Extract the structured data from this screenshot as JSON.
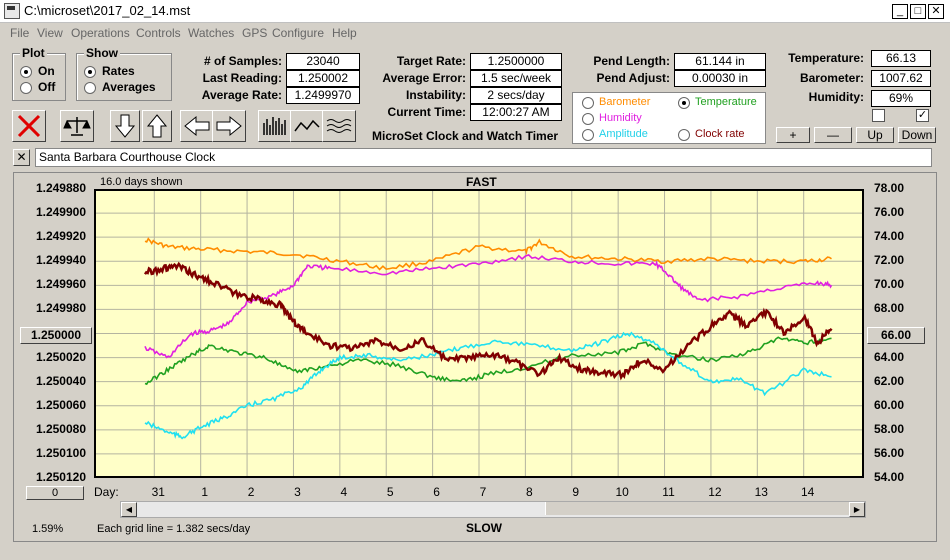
{
  "window": {
    "title": "C:\\microset\\2017_02_14.mst",
    "min": "_",
    "max": "□",
    "close": "✕"
  },
  "menu": [
    "File",
    "View",
    "Operations",
    "Controls",
    "Watches",
    "GPS",
    "Configure",
    "Help"
  ],
  "plot_group": {
    "title": "Plot",
    "options": [
      "On",
      "Off"
    ],
    "selected": "On"
  },
  "show_group": {
    "title": "Show",
    "options": [
      "Rates",
      "Averages"
    ],
    "selected": "Rates"
  },
  "stats": {
    "samples_label": "# of Samples:",
    "samples": "23040",
    "last_label": "Last Reading:",
    "last": "1.250002",
    "avg_label": "Average Rate:",
    "avg": "1.2499970",
    "target_label": "Target Rate:",
    "target": "1.2500000",
    "err_label": "Average Error:",
    "err": "1.5 sec/week",
    "instab_label": "Instability:",
    "instab": "2 secs/day",
    "time_label": "Current Time:",
    "time": "12:00:27 AM",
    "pend_len_label": "Pend Length:",
    "pend_len": "61.144 in",
    "pend_adj_label": "Pend Adjust:",
    "pend_adj": "0.00030 in",
    "temp_label": "Temperature:",
    "temp": "66.13",
    "baro_label": "Barometer:",
    "baro": "1007.62",
    "hum_label": "Humidity:",
    "hum": "69%"
  },
  "app_name": "MicroSet Clock and Watch Timer",
  "sensor_options": {
    "barometer": "Barometer",
    "temperature": "Temperature",
    "humidity": "Humidity",
    "amplitude": "Amplitude",
    "clock_rate": "Clock rate",
    "selected": "Temperature"
  },
  "sensor_buttons": {
    "plus": "+",
    "minus": "—",
    "up": "Up",
    "down": "Down"
  },
  "clock_name": "Santa Barbara Courthouse Clock",
  "close_small": "✕",
  "chart_data": {
    "type": "line",
    "top_label": "FAST",
    "bottom_label": "SLOW",
    "days_shown": "16.0 days shown",
    "grid_note": "Each grid line = 1.382 secs/day",
    "percent": "1.59%",
    "left_button": "1.250000",
    "right_button": "66.00",
    "zero_button": "0",
    "xlabel": "Day:",
    "x_ticks": [
      "31",
      "1",
      "2",
      "3",
      "4",
      "5",
      "6",
      "7",
      "8",
      "9",
      "10",
      "11",
      "12",
      "13",
      "14"
    ],
    "y_left_ticks": [
      "1.249880",
      "1.249900",
      "1.249920",
      "1.249940",
      "1.249960",
      "1.249980",
      "1.250000",
      "1.250020",
      "1.250040",
      "1.250060",
      "1.250080",
      "1.250100",
      "1.250120"
    ],
    "y_right_ticks": [
      "78.00",
      "76.00",
      "74.00",
      "72.00",
      "70.00",
      "68.00",
      "66.00",
      "64.00",
      "62.00",
      "60.00",
      "58.00",
      "56.00",
      "54.00"
    ],
    "ylim_left": [
      1.24988,
      1.25012
    ],
    "ylim_right": [
      54,
      78
    ],
    "colors": {
      "rate": "#800000",
      "barometer": "#ff8c00",
      "humidity": "#e020e0",
      "temperature": "#20a020",
      "amplitude": "#20e0f0",
      "bg": "#ffffc8",
      "grid": "#b4b4a0"
    },
    "series": [
      {
        "name": "Barometer",
        "color": "#ff8c00",
        "x": [
          -0.2,
          0.3,
          1.0,
          2.0,
          3.0,
          4.0,
          5.0,
          6.0,
          7.0,
          8.0,
          8.3,
          9.0,
          10.0,
          11.0,
          12.0,
          13.0,
          14.0,
          14.6
        ],
        "y": [
          1.249922,
          1.249928,
          1.24993,
          1.249932,
          1.249934,
          1.24994,
          1.249946,
          1.24994,
          1.249928,
          1.249932,
          1.249924,
          1.249936,
          1.249938,
          1.24994,
          1.249938,
          1.24994,
          1.24994,
          1.249938
        ]
      },
      {
        "name": "Humidity",
        "color": "#e020e0",
        "x": [
          -0.2,
          0.3,
          0.8,
          1.2,
          1.6,
          2.0,
          2.6,
          3.0,
          3.3,
          3.8,
          5.0,
          6.0,
          7.0,
          8.0,
          9.0,
          10.0,
          10.8,
          11.0,
          11.3,
          11.7,
          12.5,
          13.5,
          14.3,
          14.6
        ],
        "y": [
          1.250012,
          1.25002,
          1.25,
          1.249998,
          1.249992,
          1.249974,
          1.249968,
          1.24996,
          1.249944,
          1.249946,
          1.24995,
          1.249946,
          1.249942,
          1.249936,
          1.24994,
          1.249942,
          1.249942,
          1.249948,
          1.24996,
          1.249972,
          1.24997,
          1.249962,
          1.249958,
          1.24996
        ]
      },
      {
        "name": "Temperature",
        "color": "#20a020",
        "x": [
          -0.2,
          0.3,
          0.8,
          1.2,
          1.8,
          2.4,
          3.0,
          3.6,
          4.4,
          5.2,
          6.0,
          6.6,
          7.2,
          8.0,
          9.0,
          10.0,
          10.6,
          11.2,
          12.0,
          12.8,
          13.5,
          14.0,
          14.6
        ],
        "y": [
          1.250042,
          1.25003,
          1.250018,
          1.25001,
          1.250016,
          1.25002,
          1.250032,
          1.250028,
          1.250022,
          1.250026,
          1.250036,
          1.25004,
          1.250034,
          1.250028,
          1.250018,
          1.250016,
          1.250008,
          1.250018,
          1.250022,
          1.250016,
          1.250004,
          1.250008,
          1.250004
        ]
      },
      {
        "name": "Amplitude",
        "color": "#20e0f0",
        "x": [
          -0.2,
          0.3,
          0.6,
          1.0,
          1.5,
          2.0,
          2.6,
          3.2,
          3.6,
          4.0,
          4.6,
          5.2,
          6.0,
          6.6,
          7.4,
          8.2,
          9.0,
          9.6,
          10.2,
          10.8,
          11.4,
          12.0,
          12.6,
          13.2,
          14.0,
          14.6
        ],
        "y": [
          1.250074,
          1.250082,
          1.250086,
          1.250078,
          1.25007,
          1.25006,
          1.250054,
          1.250044,
          1.25003,
          1.25002,
          1.250018,
          1.250022,
          1.250018,
          1.250012,
          1.250006,
          1.25001,
          1.250014,
          1.250008,
          1.25,
          1.250008,
          1.250026,
          1.25004,
          1.250038,
          1.25005,
          1.25003,
          1.250036
        ]
      },
      {
        "name": "Rate",
        "color": "#800000",
        "x": [
          -0.2,
          0.2,
          0.5,
          0.9,
          1.3,
          1.8,
          2.3,
          2.7,
          3.0,
          3.3,
          3.8,
          4.3,
          4.8,
          5.3,
          5.8,
          6.3,
          6.8,
          7.3,
          7.8,
          8.3,
          8.7,
          9.2,
          9.6,
          10.1,
          10.5,
          11.0,
          11.5,
          12.0,
          12.4,
          12.8,
          13.2,
          13.6,
          14.0,
          14.3,
          14.6
        ],
        "y": [
          1.249949,
          1.249946,
          1.249944,
          1.249952,
          1.249958,
          1.249968,
          1.249972,
          1.249976,
          1.24999,
          1.25,
          1.25001,
          1.250012,
          1.250006,
          1.250012,
          1.250006,
          1.250022,
          1.25002,
          1.250018,
          1.250024,
          1.250034,
          1.25002,
          1.25003,
          1.250032,
          1.250034,
          1.250022,
          1.25003,
          1.25001,
          1.249994,
          1.249984,
          1.249994,
          1.249982,
          1.25,
          1.249986,
          1.250008,
          1.249996
        ]
      }
    ]
  }
}
